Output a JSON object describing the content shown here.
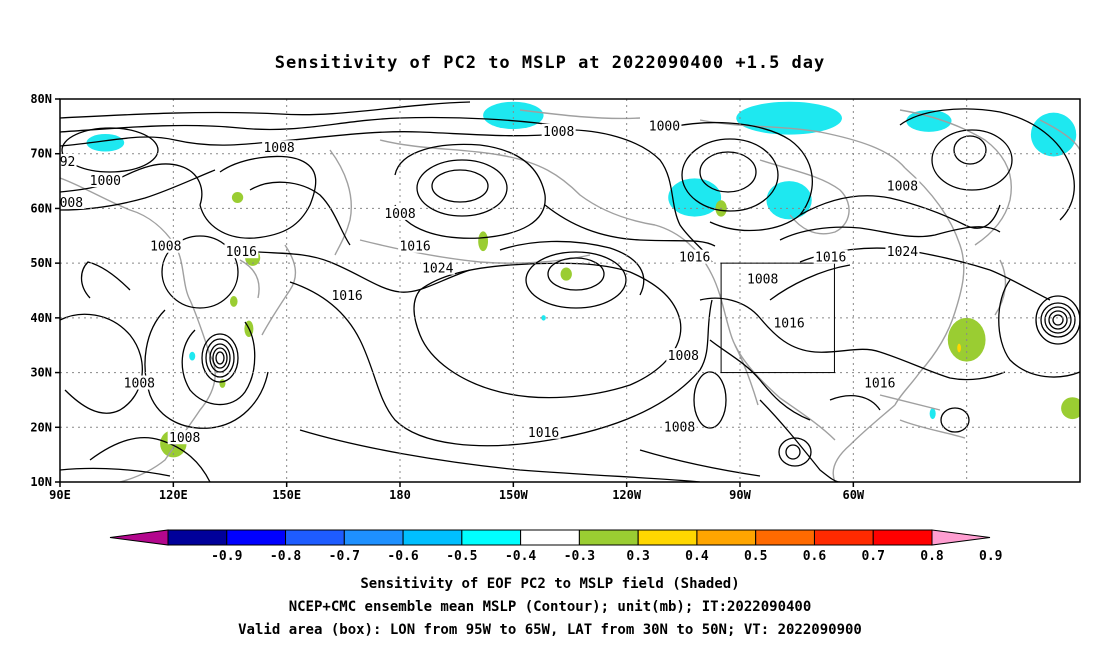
{
  "title": "Sensitivity of PC2 to MSLP at 2022090400 +1.5 day",
  "x_ticks": [
    "90E",
    "120E",
    "150E",
    "180",
    "150W",
    "120W",
    "90W",
    "60W"
  ],
  "y_ticks": [
    "10N",
    "20N",
    "30N",
    "40N",
    "50N",
    "60N",
    "70N",
    "80N"
  ],
  "contour_labels": [
    {
      "text": "1008",
      "lon": 148,
      "lat": 71
    },
    {
      "text": "1000",
      "lon": 102,
      "lat": 65
    },
    {
      "text": "92",
      "lon": 92,
      "lat": 68.5
    },
    {
      "text": "008",
      "lon": 93,
      "lat": 61
    },
    {
      "text": "1008",
      "lon": 118,
      "lat": 53
    },
    {
      "text": "1016",
      "lon": 138,
      "lat": 52
    },
    {
      "text": "1008",
      "lon": 180,
      "lat": 59
    },
    {
      "text": "1016",
      "lon": 184,
      "lat": 53
    },
    {
      "text": "1024",
      "lon": 190,
      "lat": 49
    },
    {
      "text": "1016",
      "lon": 166,
      "lat": 44
    },
    {
      "text": "1008",
      "lon": 222,
      "lat": 74
    },
    {
      "text": "1000",
      "lon": 250,
      "lat": 75
    },
    {
      "text": "1016",
      "lon": 258,
      "lat": 51
    },
    {
      "text": "1008",
      "lon": 276,
      "lat": 47
    },
    {
      "text": "1016",
      "lon": 283,
      "lat": 39
    },
    {
      "text": "1008",
      "lon": 255,
      "lat": 33
    },
    {
      "text": "1016",
      "lon": 294,
      "lat": 51
    },
    {
      "text": "1024",
      "lon": 313,
      "lat": 52
    },
    {
      "text": "1008",
      "lon": 313,
      "lat": 64
    },
    {
      "text": "1016",
      "lon": 307,
      "lat": 28
    },
    {
      "text": "1008",
      "lon": 111,
      "lat": 28
    },
    {
      "text": "1008",
      "lon": 123,
      "lat": 18
    },
    {
      "text": "1016",
      "lon": 218,
      "lat": 19
    },
    {
      "text": "1008",
      "lon": 254,
      "lat": 20
    }
  ],
  "valid_box": {
    "lon_w": -95,
    "lon_e": -65,
    "lat_s": 30,
    "lat_n": 50
  },
  "colorbar": {
    "labels": [
      "-0.9",
      "-0.8",
      "-0.7",
      "-0.6",
      "-0.5",
      "-0.4",
      "-0.3",
      "0.3",
      "0.4",
      "0.5",
      "0.6",
      "0.7",
      "0.8",
      "0.9"
    ],
    "colors": [
      "#b3078d",
      "#00009a",
      "#0000ff",
      "#1e5cff",
      "#1e90ff",
      "#00bfff",
      "#00ffff",
      "#ffffff",
      "#9acd32",
      "#ffd700",
      "#ffa500",
      "#ff6a00",
      "#ff2a00",
      "#ff0000",
      "#ff9ed1"
    ]
  },
  "captions": [
    "Sensitivity of EOF PC2 to MSLP field (Shaded)",
    "NCEP+CMC ensemble mean MSLP (Contour); unit(mb); IT:2022090400",
    "Valid area (box): LON from 95W to 65W, LAT from 30N to 50N; VT: 2022090900"
  ],
  "shading": {
    "cyan": [
      {
        "lon": 102,
        "lat": 72,
        "rx": 5,
        "ry": 1.6
      },
      {
        "lon": 210,
        "lat": 77,
        "rx": 8,
        "ry": 2.5
      },
      {
        "lon": 258,
        "lat": 62,
        "rx": 7,
        "ry": 3.5
      },
      {
        "lon": 283,
        "lat": 61.5,
        "rx": 6,
        "ry": 3.5
      },
      {
        "lon": 283,
        "lat": 76.5,
        "rx": 14,
        "ry": 3
      },
      {
        "lon": 320,
        "lat": 76,
        "rx": 6,
        "ry": 2
      },
      {
        "lon": 353,
        "lat": 73.5,
        "rx": 6,
        "ry": 4
      },
      {
        "lon": 125,
        "lat": 33,
        "rx": 0.8,
        "ry": 0.8
      },
      {
        "lon": 218,
        "lat": 40,
        "rx": 0.6,
        "ry": 0.5
      },
      {
        "lon": 321,
        "lat": 22.5,
        "rx": 0.8,
        "ry": 1
      }
    ],
    "green": [
      {
        "lon": 120,
        "lat": 17,
        "rx": 3.5,
        "ry": 2.5
      },
      {
        "lon": 137,
        "lat": 62,
        "rx": 1.5,
        "ry": 1
      },
      {
        "lon": 141,
        "lat": 51,
        "rx": 2,
        "ry": 1.5
      },
      {
        "lon": 136,
        "lat": 43,
        "rx": 1,
        "ry": 1
      },
      {
        "lon": 140,
        "lat": 38,
        "rx": 1.2,
        "ry": 1.5
      },
      {
        "lon": 133,
        "lat": 28,
        "rx": 0.8,
        "ry": 0.8
      },
      {
        "lon": 202,
        "lat": 54,
        "rx": 1.3,
        "ry": 1.8
      },
      {
        "lon": 224,
        "lat": 48,
        "rx": 1.5,
        "ry": 1.2
      },
      {
        "lon": 265,
        "lat": 60,
        "rx": 1.5,
        "ry": 1.5
      },
      {
        "lon": 330,
        "lat": 36,
        "rx": 5,
        "ry": 4
      },
      {
        "lon": 358,
        "lat": 23.5,
        "rx": 3,
        "ry": 2
      },
      {
        "lon": 280,
        "lat": 39,
        "rx": 1,
        "ry": 1
      }
    ],
    "yellow": [
      {
        "lon": 328,
        "lat": 34.5,
        "rx": 0.5,
        "ry": 0.8
      }
    ]
  }
}
